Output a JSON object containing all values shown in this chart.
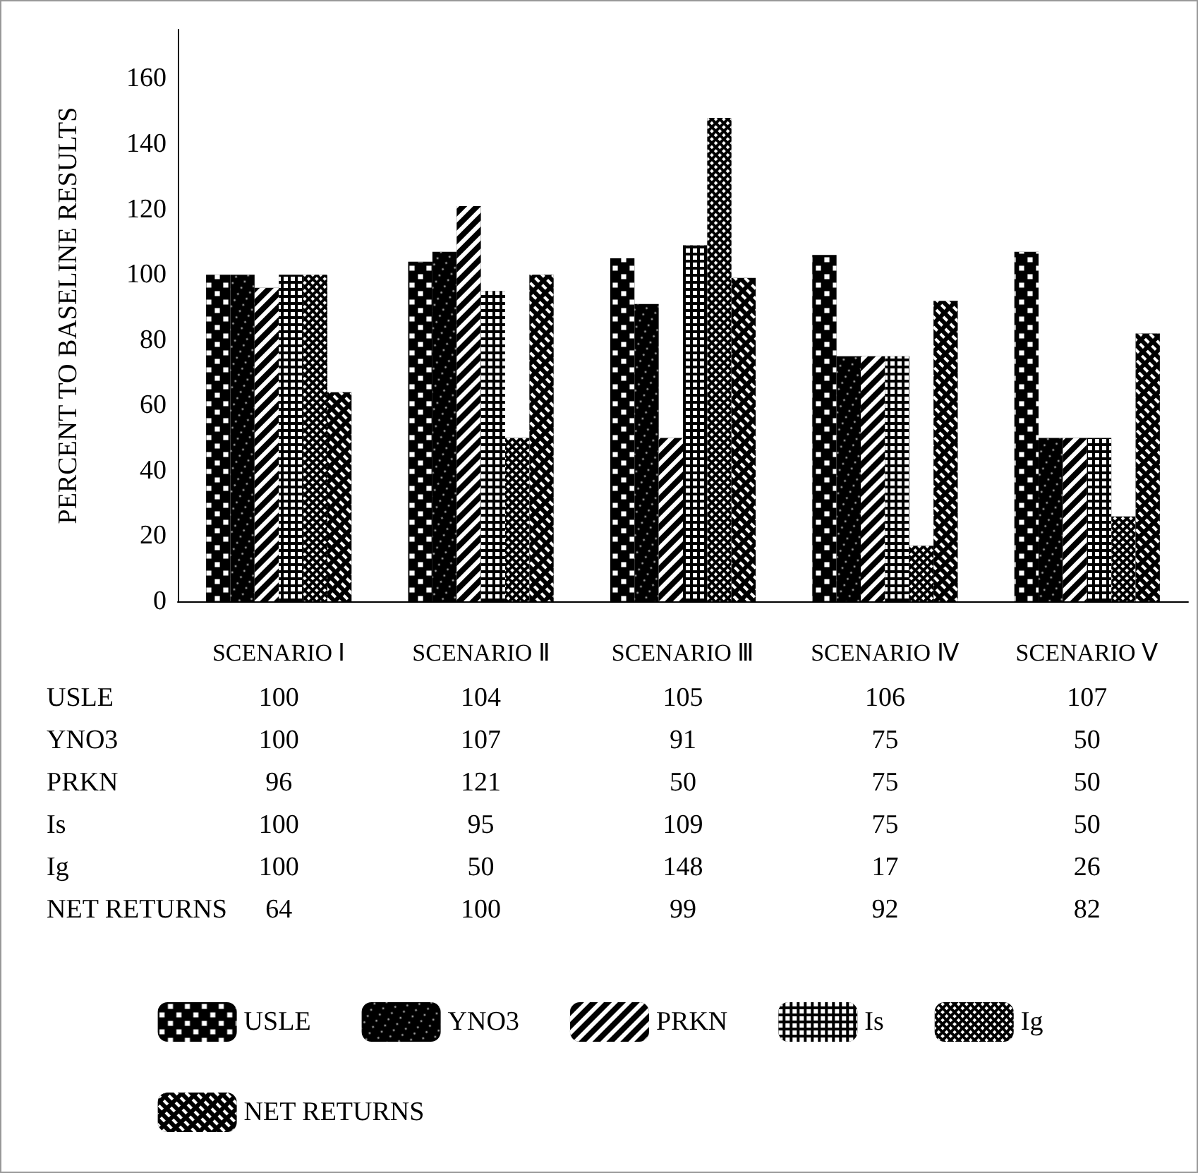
{
  "chart_data": {
    "type": "bar",
    "ylabel": "PERCENT TO BASELINE RESULTS",
    "categories": [
      "SCENARIO Ⅰ",
      "SCENARIO Ⅱ",
      "SCENARIO Ⅲ",
      "SCENARIO Ⅳ",
      "SCENARIO Ⅴ"
    ],
    "series": [
      {
        "name": "USLE",
        "color": "#000000",
        "values": [
          100,
          104,
          105,
          106,
          107
        ]
      },
      {
        "name": "YNO3",
        "color": "#000000",
        "values": [
          100,
          107,
          91,
          75,
          50
        ]
      },
      {
        "name": "PRKN",
        "color": "#000000",
        "values": [
          96,
          121,
          50,
          75,
          50
        ]
      },
      {
        "name": "Is",
        "color": "#000000",
        "values": [
          100,
          95,
          109,
          75,
          50
        ]
      },
      {
        "name": "Ig",
        "color": "#000000",
        "values": [
          100,
          50,
          148,
          17,
          26
        ]
      },
      {
        "name": "NET RETURNS",
        "color": "#000000",
        "values": [
          64,
          100,
          99,
          92,
          82
        ]
      }
    ],
    "ylim": [
      0,
      175
    ],
    "yticks": [
      0,
      20,
      40,
      60,
      80,
      100,
      120,
      140,
      160
    ],
    "grid": false,
    "legend": "bottom",
    "data_labels": true
  }
}
